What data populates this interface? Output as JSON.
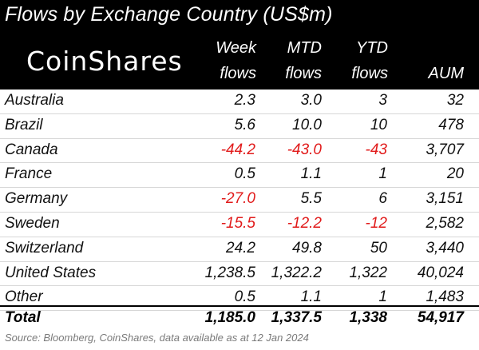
{
  "title": "Flows by Exchange Country (US$m)",
  "logo_text": "CoinShares",
  "columns": [
    {
      "line1": "Week",
      "line2": "flows"
    },
    {
      "line1": "MTD",
      "line2": "flows"
    },
    {
      "line1": "YTD",
      "line2": "flows"
    },
    {
      "line1": "",
      "line2": "AUM"
    }
  ],
  "rows": [
    {
      "name": "Australia",
      "week": "2.3",
      "mtd": "3.0",
      "ytd": "3",
      "aum": "32",
      "neg": [
        false,
        false,
        false
      ]
    },
    {
      "name": "Brazil",
      "week": "5.6",
      "mtd": "10.0",
      "ytd": "10",
      "aum": "478",
      "neg": [
        false,
        false,
        false
      ]
    },
    {
      "name": "Canada",
      "week": "-44.2",
      "mtd": "-43.0",
      "ytd": "-43",
      "aum": "3,707",
      "neg": [
        true,
        true,
        true
      ]
    },
    {
      "name": "France",
      "week": "0.5",
      "mtd": "1.1",
      "ytd": "1",
      "aum": "20",
      "neg": [
        false,
        false,
        false
      ]
    },
    {
      "name": "Germany",
      "week": "-27.0",
      "mtd": "5.5",
      "ytd": "6",
      "aum": "3,151",
      "neg": [
        true,
        false,
        false
      ]
    },
    {
      "name": "Sweden",
      "week": "-15.5",
      "mtd": "-12.2",
      "ytd": "-12",
      "aum": "2,582",
      "neg": [
        true,
        true,
        true
      ]
    },
    {
      "name": "Switzerland",
      "week": "24.2",
      "mtd": "49.8",
      "ytd": "50",
      "aum": "3,440",
      "neg": [
        false,
        false,
        false
      ]
    },
    {
      "name": "United States",
      "week": "1,238.5",
      "mtd": "1,322.2",
      "ytd": "1,322",
      "aum": "40,024",
      "neg": [
        false,
        false,
        false
      ]
    },
    {
      "name": "Other",
      "week": "0.5",
      "mtd": "1.1",
      "ytd": "1",
      "aum": "1,483",
      "neg": [
        false,
        false,
        false
      ]
    }
  ],
  "total": {
    "name": "Total",
    "week": "1,185.0",
    "mtd": "1,337.5",
    "ytd": "1,338",
    "aum": "54,917"
  },
  "source": "Source: Bloomberg, CoinShares, data available as at 12 Jan 2024",
  "colors": {
    "header_bg": "#000000",
    "negative": "#e11b1b",
    "source_text": "#7a7a7a"
  }
}
